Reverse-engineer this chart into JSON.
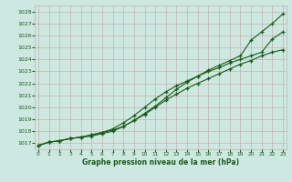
{
  "title": "Graphe pression niveau de la mer (hPa)",
  "bg_color": "#cce8e0",
  "grid_color_major": "#c8b0b0",
  "grid_color_minor": "#ddc8c8",
  "line_color": "#1a5c1a",
  "ylim": [
    1016.5,
    1028.5
  ],
  "xlim": [
    -0.3,
    23.3
  ],
  "yticks": [
    1017,
    1018,
    1019,
    1020,
    1021,
    1022,
    1023,
    1024,
    1025,
    1026,
    1027,
    1028
  ],
  "xticks": [
    0,
    1,
    2,
    3,
    4,
    5,
    6,
    7,
    8,
    9,
    10,
    11,
    12,
    13,
    14,
    15,
    16,
    17,
    18,
    19,
    20,
    21,
    22,
    23
  ],
  "series_upper": [
    1016.8,
    1017.1,
    1017.2,
    1017.4,
    1017.5,
    1017.7,
    1017.9,
    1018.1,
    1018.4,
    1018.9,
    1019.5,
    1020.1,
    1020.8,
    1021.5,
    1022.1,
    1022.6,
    1023.1,
    1023.5,
    1023.9,
    1024.3,
    1025.6,
    1026.3,
    1027.0,
    1027.8
  ],
  "series_mid": [
    1016.8,
    1017.1,
    1017.2,
    1017.4,
    1017.5,
    1017.7,
    1017.9,
    1018.2,
    1018.7,
    1019.3,
    1020.0,
    1020.7,
    1021.3,
    1021.8,
    1022.2,
    1022.6,
    1023.0,
    1023.3,
    1023.7,
    1024.0,
    1024.3,
    1024.6,
    1025.7,
    1026.3
  ],
  "series_low": [
    1016.8,
    1017.1,
    1017.2,
    1017.4,
    1017.5,
    1017.6,
    1017.8,
    1018.0,
    1018.4,
    1018.9,
    1019.4,
    1020.0,
    1020.6,
    1021.1,
    1021.6,
    1022.0,
    1022.4,
    1022.8,
    1023.2,
    1023.6,
    1023.9,
    1024.3,
    1024.6,
    1024.8
  ]
}
